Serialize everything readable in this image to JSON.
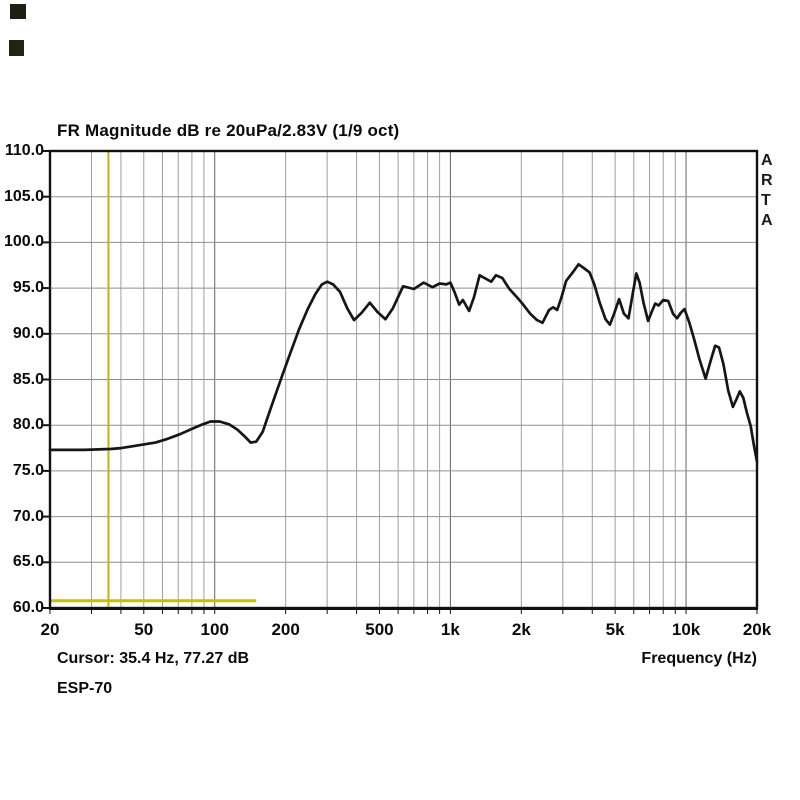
{
  "title": "FR Magnitude dB re 20uPa/2.83V (1/9 oct)",
  "watermark_letters": [
    "A",
    "R",
    "T",
    "A"
  ],
  "footer": {
    "cursor_text": "Cursor: 35.4 Hz, 77.27 dB",
    "series_label": "ESP-70",
    "x_axis_label": "Frequency (Hz)"
  },
  "chart_data": {
    "type": "line",
    "title": "FR Magnitude dB re 20uPa/2.83V (1/9 oct)",
    "xlabel": "Frequency (Hz)",
    "ylabel": "FR Magnitude dB re 20uPa/2.83V",
    "x_scale": "log",
    "xlim": [
      20,
      20000
    ],
    "ylim": [
      60,
      110
    ],
    "grid": "on",
    "legend_position": "none",
    "y_ticks": [
      {
        "db": 110,
        "label": "110.0"
      },
      {
        "db": 105,
        "label": "105.0"
      },
      {
        "db": 100,
        "label": "100.0"
      },
      {
        "db": 95,
        "label": "95.0"
      },
      {
        "db": 90,
        "label": "90.0"
      },
      {
        "db": 85,
        "label": "85.0"
      },
      {
        "db": 80,
        "label": "80.0"
      },
      {
        "db": 75,
        "label": "75.0"
      },
      {
        "db": 70,
        "label": "70.0"
      },
      {
        "db": 65,
        "label": "65.0"
      },
      {
        "db": 60,
        "label": "60.0"
      }
    ],
    "x_ticks": [
      {
        "hz": 20,
        "label": "20"
      },
      {
        "hz": 50,
        "label": "50"
      },
      {
        "hz": 100,
        "label": "100"
      },
      {
        "hz": 200,
        "label": "200"
      },
      {
        "hz": 500,
        "label": "500"
      },
      {
        "hz": 1000,
        "label": "1k"
      },
      {
        "hz": 2000,
        "label": "2k"
      },
      {
        "hz": 5000,
        "label": "5k"
      },
      {
        "hz": 10000,
        "label": "10k"
      },
      {
        "hz": 20000,
        "label": "20k"
      }
    ],
    "colors": {
      "curve": "#161616",
      "grid_minor": "#9f9f9f",
      "grid_decade": "#636363",
      "border": "#111111",
      "cursor_line": "#c3b217",
      "marker_line": "#c9bb10",
      "background": "#ffffff",
      "text": "#0a0a0a"
    },
    "cursor": {
      "hz": 35.4,
      "db": 77.27
    },
    "marker_segment": {
      "from_hz": 20,
      "to_hz": 150,
      "db": 60.8
    },
    "series": [
      {
        "name": "ESP-70",
        "color": "#161616",
        "points": [
          [
            20,
            77.3
          ],
          [
            24,
            77.3
          ],
          [
            28,
            77.3
          ],
          [
            32,
            77.35
          ],
          [
            36,
            77.4
          ],
          [
            40,
            77.5
          ],
          [
            45,
            77.7
          ],
          [
            50,
            77.9
          ],
          [
            56,
            78.1
          ],
          [
            63,
            78.5
          ],
          [
            71,
            79.0
          ],
          [
            80,
            79.6
          ],
          [
            89,
            80.1
          ],
          [
            96,
            80.4
          ],
          [
            105,
            80.4
          ],
          [
            115,
            80.1
          ],
          [
            125,
            79.5
          ],
          [
            135,
            78.7
          ],
          [
            142,
            78.1
          ],
          [
            150,
            78.2
          ],
          [
            160,
            79.3
          ],
          [
            170,
            81.3
          ],
          [
            182,
            83.5
          ],
          [
            195,
            85.7
          ],
          [
            210,
            88.0
          ],
          [
            228,
            90.5
          ],
          [
            248,
            92.7
          ],
          [
            268,
            94.4
          ],
          [
            285,
            95.4
          ],
          [
            300,
            95.7
          ],
          [
            318,
            95.4
          ],
          [
            340,
            94.6
          ],
          [
            365,
            92.8
          ],
          [
            390,
            91.5
          ],
          [
            420,
            92.3
          ],
          [
            455,
            93.4
          ],
          [
            490,
            92.4
          ],
          [
            530,
            91.6
          ],
          [
            570,
            92.8
          ],
          [
            630,
            95.2
          ],
          [
            700,
            94.9
          ],
          [
            770,
            95.6
          ],
          [
            840,
            95.1
          ],
          [
            900,
            95.5
          ],
          [
            960,
            95.4
          ],
          [
            1000,
            95.6
          ],
          [
            1040,
            94.6
          ],
          [
            1090,
            93.2
          ],
          [
            1130,
            93.7
          ],
          [
            1200,
            92.5
          ],
          [
            1260,
            94.0
          ],
          [
            1330,
            96.4
          ],
          [
            1420,
            96.0
          ],
          [
            1490,
            95.7
          ],
          [
            1560,
            96.4
          ],
          [
            1660,
            96.1
          ],
          [
            1780,
            94.9
          ],
          [
            1900,
            94.1
          ],
          [
            2020,
            93.3
          ],
          [
            2180,
            92.2
          ],
          [
            2330,
            91.5
          ],
          [
            2460,
            91.2
          ],
          [
            2620,
            92.6
          ],
          [
            2730,
            92.9
          ],
          [
            2840,
            92.6
          ],
          [
            2960,
            94.0
          ],
          [
            3100,
            95.8
          ],
          [
            3300,
            96.7
          ],
          [
            3500,
            97.6
          ],
          [
            3680,
            97.2
          ],
          [
            3900,
            96.7
          ],
          [
            4080,
            95.4
          ],
          [
            4300,
            93.4
          ],
          [
            4550,
            91.6
          ],
          [
            4750,
            91.0
          ],
          [
            4950,
            92.2
          ],
          [
            5200,
            93.8
          ],
          [
            5450,
            92.2
          ],
          [
            5700,
            91.7
          ],
          [
            5950,
            94.5
          ],
          [
            6150,
            96.6
          ],
          [
            6350,
            95.6
          ],
          [
            6600,
            93.4
          ],
          [
            6900,
            91.4
          ],
          [
            7150,
            92.4
          ],
          [
            7400,
            93.3
          ],
          [
            7650,
            93.1
          ],
          [
            8000,
            93.7
          ],
          [
            8400,
            93.6
          ],
          [
            8800,
            92.2
          ],
          [
            9150,
            91.7
          ],
          [
            9500,
            92.3
          ],
          [
            9850,
            92.7
          ],
          [
            10300,
            91.3
          ],
          [
            10800,
            89.5
          ],
          [
            11400,
            87.2
          ],
          [
            12100,
            85.1
          ],
          [
            12700,
            87.0
          ],
          [
            13300,
            88.7
          ],
          [
            13800,
            88.5
          ],
          [
            14400,
            86.7
          ],
          [
            15100,
            83.8
          ],
          [
            15800,
            82.0
          ],
          [
            16400,
            82.9
          ],
          [
            16900,
            83.7
          ],
          [
            17500,
            83.0
          ],
          [
            18100,
            81.4
          ],
          [
            18800,
            79.9
          ],
          [
            19400,
            77.8
          ],
          [
            20000,
            76.0
          ]
        ]
      }
    ]
  }
}
